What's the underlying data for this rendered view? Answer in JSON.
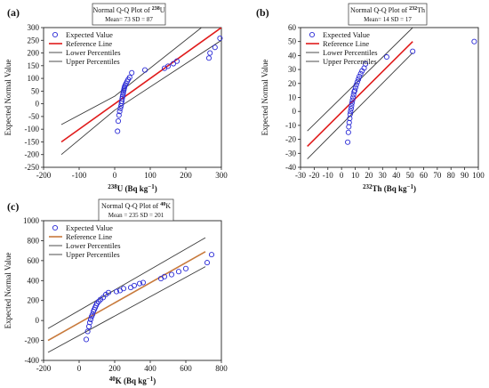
{
  "colors": {
    "expected": "#2b2bd6",
    "reference": "#e01b1b",
    "reference_k": "#c87a3c",
    "lower": "#3a3a3a",
    "upper": "#3a3a3a"
  },
  "chart_data": [
    {
      "type": "scatter",
      "panel": "(a)",
      "title_prefix": "Normal Q-Q Plot of ",
      "title_sup": "238",
      "title_el": "U",
      "stats": "Mean= 73   SD = 87",
      "xlabel_sup": "238",
      "xlabel_text": "U (Bq kg",
      "xlabel_exp": "−1",
      "xlabel_close": ")",
      "ylabel": "Expected Normal Value",
      "xlim": [
        -200,
        300
      ],
      "ylim": [
        -250,
        300
      ],
      "xticks": [
        -200,
        -100,
        0,
        100,
        200,
        300
      ],
      "yticks": [
        -250,
        -200,
        -150,
        -100,
        -50,
        0,
        50,
        100,
        150,
        200,
        250,
        300
      ],
      "legend": [
        "Expected Value",
        "Reference Line",
        "Lower Percentiles",
        "Upper Percentiles"
      ],
      "legend_position": "top-left",
      "series": [
        {
          "name": "Expected Value",
          "kind": "points",
          "x": [
            8,
            10,
            12,
            14,
            16,
            18,
            19,
            20,
            21,
            22,
            23,
            24,
            25,
            26,
            27,
            28,
            30,
            32,
            35,
            38,
            42,
            48,
            85,
            140,
            150,
            165,
            175,
            265,
            268,
            282,
            296
          ],
          "y": [
            -108,
            -68,
            -45,
            -30,
            -18,
            -8,
            2,
            10,
            20,
            28,
            35,
            42,
            50,
            56,
            62,
            68,
            74,
            80,
            88,
            96,
            104,
            122,
            133,
            140,
            148,
            158,
            168,
            180,
            200,
            222,
            258
          ]
        },
        {
          "name": "Reference Line",
          "kind": "line",
          "x": [
            -150,
            300
          ],
          "y": [
            -150,
            300
          ]
        },
        {
          "name": "Lower Percentiles",
          "kind": "line",
          "x": [
            -150,
            0,
            300
          ],
          "y": [
            -200,
            -25,
            250
          ]
        },
        {
          "name": "Upper Percentiles",
          "kind": "line",
          "x": [
            -150,
            0,
            300
          ],
          "y": [
            -82,
            30,
            362
          ]
        }
      ]
    },
    {
      "type": "scatter",
      "panel": "(b)",
      "title_prefix": "Normal Q-Q Plot of ",
      "title_sup": "232",
      "title_el": "Th",
      "stats": "Mean= 14   SD = 17",
      "xlabel_sup": "232",
      "xlabel_text": "Th (Bq kg",
      "xlabel_exp": "−1",
      "xlabel_close": ")",
      "ylabel": "Expected Normal Value",
      "xlim": [
        -30,
        100
      ],
      "ylim": [
        -40,
        60
      ],
      "xticks": [
        -30,
        -20,
        -10,
        0,
        10,
        20,
        30,
        40,
        50,
        60,
        70,
        80,
        90,
        100
      ],
      "yticks": [
        -40,
        -30,
        -20,
        -10,
        0,
        10,
        20,
        30,
        40,
        50,
        60
      ],
      "legend": [
        "Expected Value",
        "Reference Line",
        "Lower Percentiles",
        "Upper Percentiles"
      ],
      "legend_position": "top-left",
      "series": [
        {
          "name": "Expected Value",
          "kind": "points",
          "x": [
            4.5,
            5,
            5.3,
            5.6,
            6,
            6.3,
            6.6,
            7,
            7.3,
            7.6,
            8,
            8.4,
            8.8,
            9.2,
            9.7,
            10.2,
            10.8,
            11.5,
            12.3,
            13,
            14,
            15,
            16.5,
            17.5,
            33,
            52,
            97
          ],
          "y": [
            -22,
            -15,
            -11,
            -8,
            -5,
            -2,
            0,
            2,
            4,
            6,
            8,
            10,
            12,
            14,
            15,
            17,
            19,
            21,
            23,
            25,
            27,
            29,
            31,
            34,
            39,
            43,
            50
          ]
        },
        {
          "name": "Reference Line",
          "kind": "line",
          "x": [
            -25,
            52
          ],
          "y": [
            -25,
            50
          ]
        },
        {
          "name": "Lower Percentiles",
          "kind": "line",
          "x": [
            -25,
            52
          ],
          "y": [
            -34,
            42
          ]
        },
        {
          "name": "Upper Percentiles",
          "kind": "line",
          "x": [
            -25,
            52
          ],
          "y": [
            -14,
            60
          ]
        }
      ]
    },
    {
      "type": "scatter",
      "panel": "(c)",
      "title_prefix": "Normal Q-Q Plot of ",
      "title_sup": "40",
      "title_el": "K",
      "stats": "Mean = 235   SD = 201",
      "xlabel_sup": "40",
      "xlabel_text": "K (Bq kg",
      "xlabel_exp": "−1",
      "xlabel_close": ")",
      "ylabel": "Expected Normal Value",
      "xlim": [
        -200,
        800
      ],
      "ylim": [
        -400,
        1000
      ],
      "xticks": [
        -200,
        0,
        200,
        400,
        600,
        800
      ],
      "yticks": [
        -400,
        -200,
        0,
        200,
        400,
        600,
        800,
        1000
      ],
      "legend": [
        "Expected Value",
        "Reference Line",
        "Lower Percentiles",
        "Upper Percentiles"
      ],
      "legend_position": "top-left",
      "series": [
        {
          "name": "Expected Value",
          "kind": "points",
          "x": [
            40,
            48,
            55,
            60,
            65,
            70,
            75,
            80,
            85,
            90,
            95,
            100,
            110,
            120,
            135,
            150,
            165,
            210,
            230,
            250,
            290,
            310,
            340,
            360,
            460,
            480,
            520,
            560,
            600,
            720,
            745
          ],
          "y": [
            -190,
            -110,
            -60,
            -20,
            10,
            40,
            60,
            90,
            110,
            130,
            150,
            170,
            190,
            210,
            230,
            260,
            280,
            290,
            300,
            320,
            330,
            350,
            370,
            380,
            420,
            440,
            460,
            490,
            520,
            580,
            660
          ]
        },
        {
          "name": "Reference Line",
          "kind": "line",
          "x": [
            -175,
            710
          ],
          "y": [
            -200,
            690
          ]
        },
        {
          "name": "Lower Percentiles",
          "kind": "line",
          "x": [
            -175,
            710
          ],
          "y": [
            -320,
            540
          ]
        },
        {
          "name": "Upper Percentiles",
          "kind": "line",
          "x": [
            -175,
            710
          ],
          "y": [
            -80,
            830
          ]
        }
      ]
    }
  ]
}
